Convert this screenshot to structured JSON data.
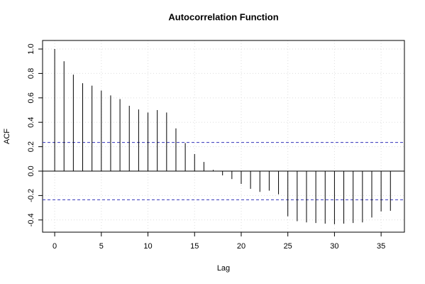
{
  "chart_data": {
    "type": "stem",
    "title": "Autocorrelation Function",
    "x_label": "Lag",
    "y_label": "ACF",
    "x": [
      0,
      1,
      2,
      3,
      4,
      5,
      6,
      7,
      8,
      9,
      10,
      11,
      12,
      13,
      14,
      15,
      16,
      17,
      18,
      19,
      20,
      21,
      22,
      23,
      24,
      25,
      26,
      27,
      28,
      29,
      30,
      31,
      32,
      33,
      34,
      35,
      36
    ],
    "values": [
      1.0,
      0.9,
      0.79,
      0.72,
      0.7,
      0.66,
      0.62,
      0.59,
      0.535,
      0.505,
      0.48,
      0.5,
      0.48,
      0.35,
      0.23,
      0.14,
      0.075,
      0.01,
      -0.035,
      -0.065,
      -0.105,
      -0.145,
      -0.17,
      -0.16,
      -0.19,
      -0.37,
      -0.41,
      -0.42,
      -0.425,
      -0.43,
      -0.435,
      -0.43,
      -0.425,
      -0.42,
      -0.38,
      -0.33,
      -0.325
    ],
    "color": "#000000",
    "confidence_limits": [
      0.235,
      -0.235
    ],
    "confidence_color": "#3333bb",
    "xlim": [
      -1.3,
      37.5
    ],
    "xticks": [
      0,
      5,
      10,
      15,
      20,
      25,
      30,
      35
    ],
    "ylim": [
      -0.5,
      1.07
    ],
    "yticks": [
      -0.4,
      -0.2,
      {
        "value": 0,
        "label": "0.0"
      },
      0.2,
      0.4,
      0.6,
      0.8,
      {
        "value": 1,
        "label": "1.0"
      }
    ],
    "grid": true
  }
}
